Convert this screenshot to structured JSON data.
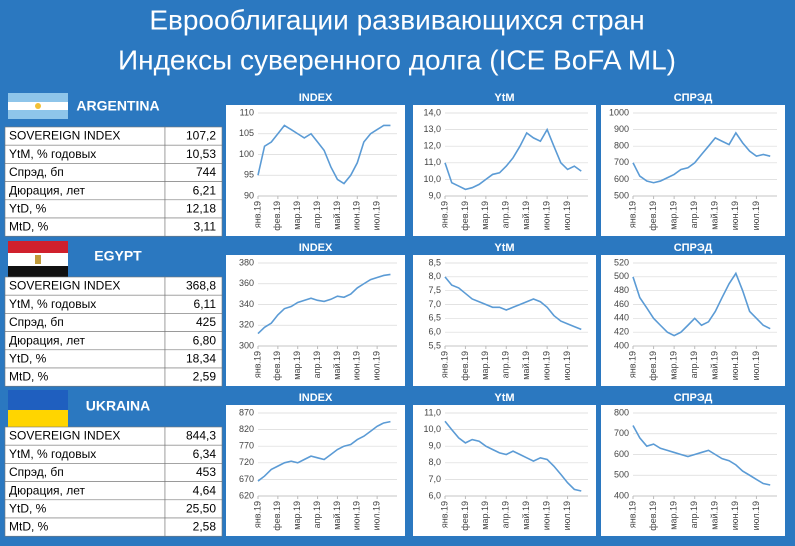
{
  "title": [
    "Еврооблигации развивающихся стран",
    "Индексы суверенного долга (ICE BoFA ML)"
  ],
  "countries": [
    {
      "name": "ARGENTINA",
      "rows": [
        {
          "label": "SOVEREIGN INDEX",
          "value": "107,2"
        },
        {
          "label": "YtM, % годовых",
          "value": "10,53"
        },
        {
          "label": "Спрэд, бп",
          "value": "744"
        },
        {
          "label": "Дюрация, лет",
          "value": "6,21"
        },
        {
          "label": "YtD, %",
          "value": "12,18"
        },
        {
          "label": "MtD, %",
          "value": "3,11"
        }
      ]
    },
    {
      "name": "EGYPT",
      "rows": [
        {
          "label": "SOVEREIGN INDEX",
          "value": "368,8"
        },
        {
          "label": "YtM, % годовых",
          "value": "6,11"
        },
        {
          "label": "Спрэд, бп",
          "value": "425"
        },
        {
          "label": "Дюрация, лет",
          "value": "6,80"
        },
        {
          "label": "YtD, %",
          "value": "18,34"
        },
        {
          "label": "MtD, %",
          "value": "2,59"
        }
      ]
    },
    {
      "name": "UKRAINA",
      "rows": [
        {
          "label": "SOVEREIGN INDEX",
          "value": "844,3"
        },
        {
          "label": "YtM, % годовых",
          "value": "6,34"
        },
        {
          "label": "Спрэд, бп",
          "value": "453"
        },
        {
          "label": "Дюрация, лет",
          "value": "4,64"
        },
        {
          "label": "YtD, %",
          "value": "25,50"
        },
        {
          "label": "MtD, %",
          "value": "2,58"
        }
      ]
    }
  ],
  "chart_data": [
    {
      "type": "line",
      "title": "INDEX",
      "xlim": [
        0,
        7
      ],
      "xticks": [
        {
          "value": 0,
          "label": "янв.19"
        },
        {
          "value": 1,
          "label": "фев.19"
        },
        {
          "value": 2,
          "label": "мар.19"
        },
        {
          "value": 3,
          "label": "апр.19"
        },
        {
          "value": 4,
          "label": "май.19"
        },
        {
          "value": 5,
          "label": "июн.19"
        },
        {
          "value": 6,
          "label": "июл.19"
        }
      ],
      "x": [
        0,
        0.33,
        0.67,
        1,
        1.33,
        1.67,
        2,
        2.33,
        2.67,
        3,
        3.33,
        3.67,
        4,
        4.33,
        4.67,
        5,
        5.33,
        5.67,
        6,
        6.33,
        6.67
      ],
      "ylim": [
        90,
        110
      ],
      "yticks": [
        90,
        95,
        100,
        105,
        110
      ],
      "grid": true,
      "series": [
        {
          "color": "#5b9bd5",
          "values": [
            95,
            102,
            103,
            105,
            107,
            106,
            105,
            104,
            105,
            103,
            101,
            97,
            94,
            93,
            95,
            98,
            103,
            105,
            106,
            107,
            107
          ]
        }
      ]
    },
    {
      "type": "line",
      "title": "YtM",
      "xlim": [
        0,
        7
      ],
      "xticks": [
        {
          "value": 0,
          "label": "янв.19"
        },
        {
          "value": 1,
          "label": "фев.19"
        },
        {
          "value": 2,
          "label": "мар.19"
        },
        {
          "value": 3,
          "label": "апр.19"
        },
        {
          "value": 4,
          "label": "май.19"
        },
        {
          "value": 5,
          "label": "июн.19"
        },
        {
          "value": 6,
          "label": "июл.19"
        }
      ],
      "x": [
        0,
        0.33,
        0.67,
        1,
        1.33,
        1.67,
        2,
        2.33,
        2.67,
        3,
        3.33,
        3.67,
        4,
        4.33,
        4.67,
        5,
        5.33,
        5.67,
        6,
        6.33,
        6.67
      ],
      "ylim": [
        9,
        14
      ],
      "yticks": [
        {
          "value": 9,
          "label": "9,0"
        },
        {
          "value": 10,
          "label": "10,0"
        },
        {
          "value": 11,
          "label": "11,0"
        },
        {
          "value": 12,
          "label": "12,0"
        },
        {
          "value": 13,
          "label": "13,0"
        },
        {
          "value": 14,
          "label": "14,0"
        }
      ],
      "grid": true,
      "series": [
        {
          "color": "#5b9bd5",
          "values": [
            11.0,
            9.8,
            9.6,
            9.4,
            9.5,
            9.7,
            10.0,
            10.3,
            10.4,
            10.8,
            11.3,
            12.0,
            12.8,
            12.5,
            12.3,
            13.0,
            12.0,
            11.0,
            10.6,
            10.8,
            10.5
          ]
        }
      ]
    },
    {
      "type": "line",
      "title": "СПРЭД",
      "xlim": [
        0,
        7
      ],
      "xticks": [
        {
          "value": 0,
          "label": "янв.19"
        },
        {
          "value": 1,
          "label": "фев.19"
        },
        {
          "value": 2,
          "label": "мар.19"
        },
        {
          "value": 3,
          "label": "апр.19"
        },
        {
          "value": 4,
          "label": "май.19"
        },
        {
          "value": 5,
          "label": "июн.19"
        },
        {
          "value": 6,
          "label": "июл.19"
        }
      ],
      "x": [
        0,
        0.33,
        0.67,
        1,
        1.33,
        1.67,
        2,
        2.33,
        2.67,
        3,
        3.33,
        3.67,
        4,
        4.33,
        4.67,
        5,
        5.33,
        5.67,
        6,
        6.33,
        6.67
      ],
      "ylim": [
        500,
        1000
      ],
      "yticks": [
        500,
        600,
        700,
        800,
        900,
        1000
      ],
      "grid": true,
      "series": [
        {
          "color": "#5b9bd5",
          "values": [
            700,
            620,
            590,
            580,
            590,
            610,
            630,
            660,
            670,
            700,
            750,
            800,
            850,
            830,
            810,
            880,
            820,
            770,
            740,
            750,
            740
          ]
        }
      ]
    },
    {
      "type": "line",
      "title": "INDEX",
      "xlim": [
        0,
        7
      ],
      "xticks": [
        {
          "value": 0,
          "label": "янв.19"
        },
        {
          "value": 1,
          "label": "фев.19"
        },
        {
          "value": 2,
          "label": "мар.19"
        },
        {
          "value": 3,
          "label": "апр.19"
        },
        {
          "value": 4,
          "label": "май.19"
        },
        {
          "value": 5,
          "label": "июн.19"
        },
        {
          "value": 6,
          "label": "июл.19"
        }
      ],
      "x": [
        0,
        0.33,
        0.67,
        1,
        1.33,
        1.67,
        2,
        2.33,
        2.67,
        3,
        3.33,
        3.67,
        4,
        4.33,
        4.67,
        5,
        5.33,
        5.67,
        6,
        6.33,
        6.67
      ],
      "ylim": [
        300,
        380
      ],
      "yticks": [
        300,
        320,
        340,
        360,
        380
      ],
      "grid": true,
      "series": [
        {
          "color": "#5b9bd5",
          "values": [
            312,
            318,
            322,
            330,
            336,
            338,
            342,
            344,
            346,
            344,
            343,
            345,
            348,
            347,
            350,
            356,
            360,
            364,
            366,
            368,
            369
          ]
        }
      ]
    },
    {
      "type": "line",
      "title": "YtM",
      "xlim": [
        0,
        7
      ],
      "xticks": [
        {
          "value": 0,
          "label": "янв.19"
        },
        {
          "value": 1,
          "label": "фев.19"
        },
        {
          "value": 2,
          "label": "мар.19"
        },
        {
          "value": 3,
          "label": "апр.19"
        },
        {
          "value": 4,
          "label": "май.19"
        },
        {
          "value": 5,
          "label": "июн.19"
        },
        {
          "value": 6,
          "label": "июл.19"
        }
      ],
      "x": [
        0,
        0.33,
        0.67,
        1,
        1.33,
        1.67,
        2,
        2.33,
        2.67,
        3,
        3.33,
        3.67,
        4,
        4.33,
        4.67,
        5,
        5.33,
        5.67,
        6,
        6.33,
        6.67
      ],
      "ylim": [
        5.5,
        8.5
      ],
      "yticks": [
        {
          "value": 5.5,
          "label": "5,5"
        },
        {
          "value": 6,
          "label": "6,0"
        },
        {
          "value": 6.5,
          "label": "6,5"
        },
        {
          "value": 7,
          "label": "7,0"
        },
        {
          "value": 7.5,
          "label": "7,5"
        },
        {
          "value": 8,
          "label": "8,0"
        },
        {
          "value": 8.5,
          "label": "8,5"
        }
      ],
      "grid": true,
      "series": [
        {
          "color": "#5b9bd5",
          "values": [
            8.0,
            7.7,
            7.6,
            7.4,
            7.2,
            7.1,
            7.0,
            6.9,
            6.9,
            6.8,
            6.9,
            7.0,
            7.1,
            7.2,
            7.1,
            6.9,
            6.6,
            6.4,
            6.3,
            6.2,
            6.1
          ]
        }
      ]
    },
    {
      "type": "line",
      "title": "СПРЭД",
      "xlim": [
        0,
        7
      ],
      "xticks": [
        {
          "value": 0,
          "label": "янв.19"
        },
        {
          "value": 1,
          "label": "фев.19"
        },
        {
          "value": 2,
          "label": "мар.19"
        },
        {
          "value": 3,
          "label": "апр.19"
        },
        {
          "value": 4,
          "label": "май.19"
        },
        {
          "value": 5,
          "label": "июн.19"
        },
        {
          "value": 6,
          "label": "июл.19"
        }
      ],
      "x": [
        0,
        0.33,
        0.67,
        1,
        1.33,
        1.67,
        2,
        2.33,
        2.67,
        3,
        3.33,
        3.67,
        4,
        4.33,
        4.67,
        5,
        5.33,
        5.67,
        6,
        6.33,
        6.67
      ],
      "ylim": [
        400,
        520
      ],
      "yticks": [
        400,
        420,
        440,
        460,
        480,
        500,
        520
      ],
      "grid": true,
      "series": [
        {
          "color": "#5b9bd5",
          "values": [
            500,
            470,
            455,
            440,
            430,
            420,
            415,
            420,
            430,
            440,
            430,
            435,
            450,
            470,
            490,
            505,
            480,
            450,
            440,
            430,
            425
          ]
        }
      ]
    },
    {
      "type": "line",
      "title": "INDEX",
      "xlim": [
        0,
        7
      ],
      "xticks": [
        {
          "value": 0,
          "label": "янв.19"
        },
        {
          "value": 1,
          "label": "фев.19"
        },
        {
          "value": 2,
          "label": "мар.19"
        },
        {
          "value": 3,
          "label": "апр.19"
        },
        {
          "value": 4,
          "label": "май.19"
        },
        {
          "value": 5,
          "label": "июн.19"
        },
        {
          "value": 6,
          "label": "июл.19"
        }
      ],
      "x": [
        0,
        0.33,
        0.67,
        1,
        1.33,
        1.67,
        2,
        2.33,
        2.67,
        3,
        3.33,
        3.67,
        4,
        4.33,
        4.67,
        5,
        5.33,
        5.67,
        6,
        6.33,
        6.67
      ],
      "ylim": [
        620,
        870
      ],
      "yticks": [
        620,
        670,
        720,
        770,
        820,
        870
      ],
      "grid": true,
      "series": [
        {
          "color": "#5b9bd5",
          "values": [
            665,
            680,
            700,
            710,
            720,
            725,
            720,
            730,
            740,
            735,
            730,
            745,
            760,
            770,
            775,
            790,
            800,
            815,
            830,
            840,
            844
          ]
        }
      ]
    },
    {
      "type": "line",
      "title": "YtM",
      "xlim": [
        0,
        7
      ],
      "xticks": [
        {
          "value": 0,
          "label": "янв.19"
        },
        {
          "value": 1,
          "label": "фев.19"
        },
        {
          "value": 2,
          "label": "мар.19"
        },
        {
          "value": 3,
          "label": "апр.19"
        },
        {
          "value": 4,
          "label": "май.19"
        },
        {
          "value": 5,
          "label": "июн.19"
        },
        {
          "value": 6,
          "label": "июл.19"
        }
      ],
      "x": [
        0,
        0.33,
        0.67,
        1,
        1.33,
        1.67,
        2,
        2.33,
        2.67,
        3,
        3.33,
        3.67,
        4,
        4.33,
        4.67,
        5,
        5.33,
        5.67,
        6,
        6.33,
        6.67
      ],
      "ylim": [
        6,
        11
      ],
      "yticks": [
        {
          "value": 6,
          "label": "6,0"
        },
        {
          "value": 7,
          "label": "7,0"
        },
        {
          "value": 8,
          "label": "8,0"
        },
        {
          "value": 9,
          "label": "9,0"
        },
        {
          "value": 10,
          "label": "10,0"
        },
        {
          "value": 11,
          "label": "11,0"
        }
      ],
      "grid": true,
      "series": [
        {
          "color": "#5b9bd5",
          "values": [
            10.5,
            10.0,
            9.5,
            9.2,
            9.4,
            9.3,
            9.0,
            8.8,
            8.6,
            8.5,
            8.7,
            8.5,
            8.3,
            8.1,
            8.3,
            8.2,
            7.8,
            7.3,
            6.8,
            6.4,
            6.3
          ]
        }
      ]
    },
    {
      "type": "line",
      "title": "СПРЭД",
      "xlim": [
        0,
        7
      ],
      "xticks": [
        {
          "value": 0,
          "label": "янв.19"
        },
        {
          "value": 1,
          "label": "фев.19"
        },
        {
          "value": 2,
          "label": "мар.19"
        },
        {
          "value": 3,
          "label": "апр.19"
        },
        {
          "value": 4,
          "label": "май.19"
        },
        {
          "value": 5,
          "label": "июн.19"
        },
        {
          "value": 6,
          "label": "июл.19"
        }
      ],
      "x": [
        0,
        0.33,
        0.67,
        1,
        1.33,
        1.67,
        2,
        2.33,
        2.67,
        3,
        3.33,
        3.67,
        4,
        4.33,
        4.67,
        5,
        5.33,
        5.67,
        6,
        6.33,
        6.67
      ],
      "ylim": [
        400,
        800
      ],
      "yticks": [
        400,
        500,
        600,
        700,
        800
      ],
      "grid": true,
      "series": [
        {
          "color": "#5b9bd5",
          "values": [
            740,
            680,
            640,
            650,
            630,
            620,
            610,
            600,
            590,
            600,
            610,
            620,
            600,
            580,
            570,
            550,
            520,
            500,
            480,
            460,
            453
          ]
        }
      ]
    }
  ]
}
